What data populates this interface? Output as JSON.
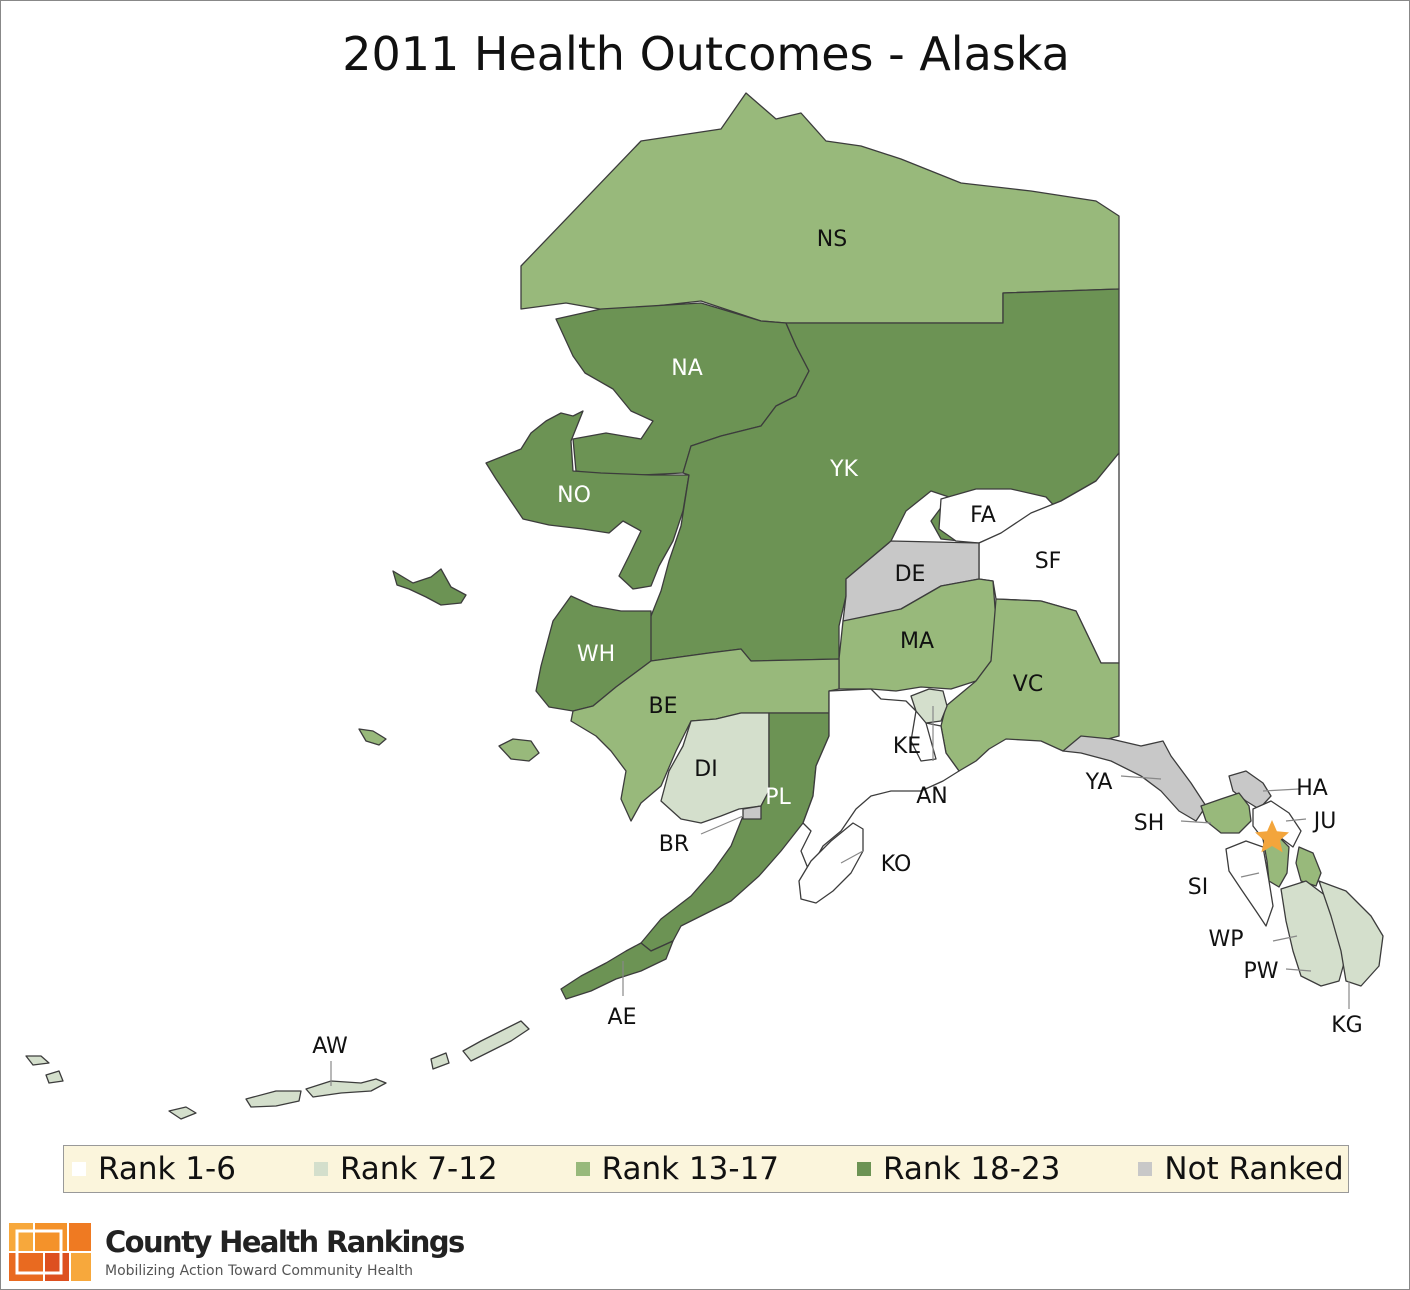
{
  "title": "2011 Health Outcomes - Alaska",
  "colors": {
    "rank_1_6": "#ffffff",
    "rank_7_12": "#d4dfcc",
    "rank_13_17": "#98b97b",
    "rank_18_23": "#6c9354",
    "not_ranked": "#c8c8c8",
    "highlight_star": "#f3a53c"
  },
  "legend": [
    {
      "label": "Rank 1-6",
      "category": "rank_1_6"
    },
    {
      "label": "Rank 7-12",
      "category": "rank_7_12"
    },
    {
      "label": "Rank 13-17",
      "category": "rank_13_17"
    },
    {
      "label": "Rank 18-23",
      "category": "rank_18_23"
    },
    {
      "label": "Not Ranked",
      "category": "not_ranked"
    }
  ],
  "regions": [
    {
      "code": "NS",
      "category": "rank_13_17"
    },
    {
      "code": "NA",
      "category": "rank_18_23"
    },
    {
      "code": "NO",
      "category": "rank_18_23"
    },
    {
      "code": "YK",
      "category": "rank_18_23"
    },
    {
      "code": "FA",
      "category": "rank_1_6"
    },
    {
      "code": "SF",
      "category": "rank_1_6"
    },
    {
      "code": "DE",
      "category": "not_ranked"
    },
    {
      "code": "WH",
      "category": "rank_18_23"
    },
    {
      "code": "MA",
      "category": "rank_13_17"
    },
    {
      "code": "VC",
      "category": "rank_13_17"
    },
    {
      "code": "BE",
      "category": "rank_13_17"
    },
    {
      "code": "DI",
      "category": "rank_7_12"
    },
    {
      "code": "PL",
      "category": "rank_18_23"
    },
    {
      "code": "KE",
      "category": "rank_1_6"
    },
    {
      "code": "AN",
      "category": "rank_7_12"
    },
    {
      "code": "BR",
      "category": "not_ranked"
    },
    {
      "code": "KO",
      "category": "rank_1_6"
    },
    {
      "code": "YA",
      "category": "not_ranked"
    },
    {
      "code": "HA",
      "category": "not_ranked"
    },
    {
      "code": "SH",
      "category": "rank_13_17"
    },
    {
      "code": "JU",
      "category": "rank_1_6"
    },
    {
      "code": "SI",
      "category": "rank_1_6"
    },
    {
      "code": "WP",
      "category": "rank_13_17"
    },
    {
      "code": "PW",
      "category": "rank_7_12"
    },
    {
      "code": "KG",
      "category": "rank_7_12"
    },
    {
      "code": "AE",
      "category": "rank_18_23"
    },
    {
      "code": "AW",
      "category": "rank_7_12"
    }
  ],
  "brand": {
    "name": "County Health Rankings",
    "tagline": "Mobilizing Action Toward Community Health"
  }
}
